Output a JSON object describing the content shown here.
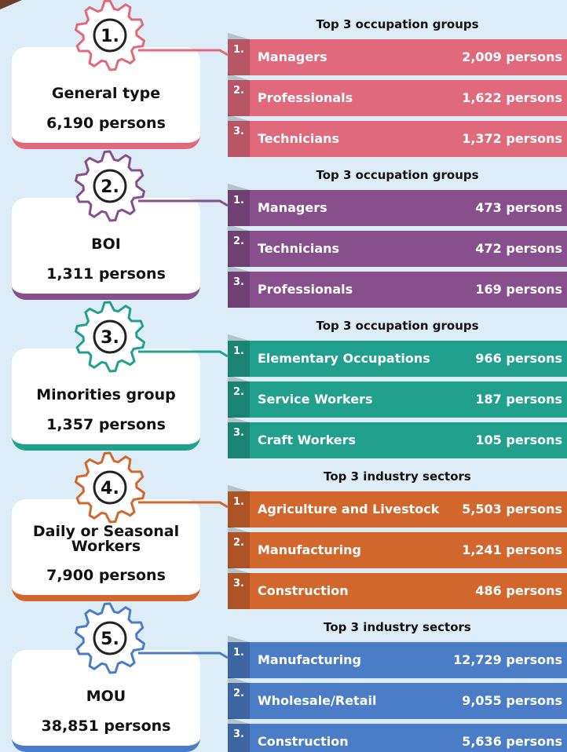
{
  "sections": [
    {
      "number": "1.",
      "title": "General type",
      "total": "6,190 persons",
      "color": "#e06a7b",
      "heading": "Top 3 occupation groups",
      "items": [
        {
          "rank": "1.",
          "name": "Managers",
          "value": "2,009 persons"
        },
        {
          "rank": "2.",
          "name": "Professionals",
          "value": "1,622 persons"
        },
        {
          "rank": "3.",
          "name": "Technicians",
          "value": "1,372 persons"
        }
      ]
    },
    {
      "number": "2.",
      "title": "BOI",
      "total": "1,311 persons",
      "color": "#87508c",
      "heading": "Top 3 occupation groups",
      "items": [
        {
          "rank": "1.",
          "name": "Managers",
          "value": "473 persons"
        },
        {
          "rank": "2.",
          "name": "Technicians",
          "value": "472 persons"
        },
        {
          "rank": "3.",
          "name": "Professionals",
          "value": "169 persons"
        }
      ]
    },
    {
      "number": "3.",
      "title": "Minorities group",
      "total": "1,357 persons",
      "color": "#22a08e",
      "heading": "Top 3 occupation groups",
      "items": [
        {
          "rank": "1.",
          "name": "Elementary Occupations",
          "value": "966 persons"
        },
        {
          "rank": "2.",
          "name": "Service Workers",
          "value": "187 persons"
        },
        {
          "rank": "3.",
          "name": "Craft Workers",
          "value": "105 persons"
        }
      ]
    },
    {
      "number": "4.",
      "title": "Daily or Seasonal Workers",
      "total": "7,900 persons",
      "color": "#d2672e",
      "heading": "Top 3 industry sectors",
      "items": [
        {
          "rank": "1.",
          "name": "Agriculture and Livestock",
          "value": "5,503 persons"
        },
        {
          "rank": "2.",
          "name": "Manufacturing",
          "value": "1,241 persons"
        },
        {
          "rank": "3.",
          "name": "Construction",
          "value": "486 persons"
        }
      ]
    },
    {
      "number": "5.",
      "title": "MOU",
      "total": "38,851 persons",
      "color": "#4b7cc6",
      "heading": "Top 3 industry sectors",
      "items": [
        {
          "rank": "1.",
          "name": "Manufacturing",
          "value": "12,729 persons"
        },
        {
          "rank": "2.",
          "name": "Wholesale/Retail",
          "value": "9,055 persons"
        },
        {
          "rank": "3.",
          "name": "Construction",
          "value": "5,636 persons"
        }
      ]
    }
  ]
}
